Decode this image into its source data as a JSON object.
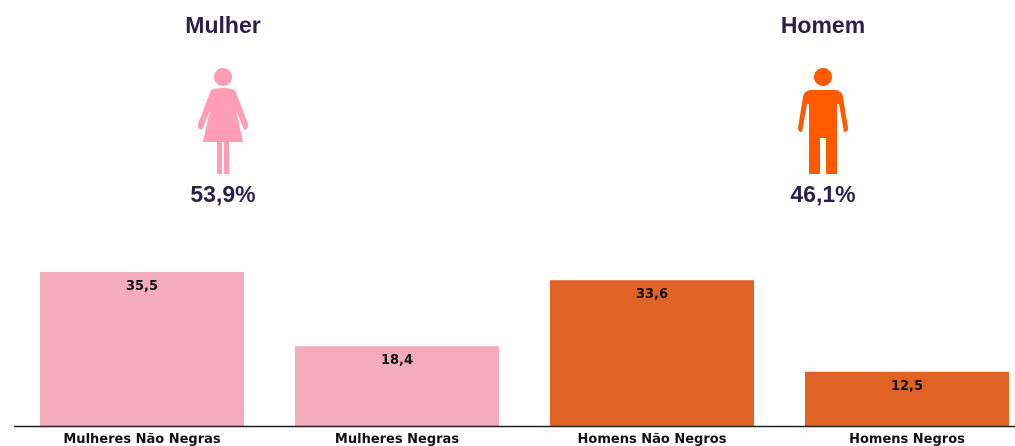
{
  "header": {
    "female": {
      "title": "Mulher",
      "percent": "53,9%",
      "icon": "woman-icon",
      "color": "#ff9db5"
    },
    "male": {
      "title": "Homem",
      "percent": "46,1%",
      "icon": "man-icon",
      "color": "#ff5a00"
    }
  },
  "chart_data": {
    "type": "bar",
    "categories": [
      "Mulheres Não Negras",
      "Mulheres Negras",
      "Homens Não Negros",
      "Homens Negros"
    ],
    "values": [
      35.5,
      18.4,
      33.6,
      12.5
    ],
    "value_labels": [
      "35,5",
      "18,4",
      "33,6",
      "12,5"
    ],
    "colors": [
      "#f3abbd",
      "#f3abbd",
      "#e06224",
      "#e06224"
    ],
    "title": "",
    "xlabel": "",
    "ylabel": "",
    "ylim": [
      0,
      35.5
    ],
    "grid": false,
    "legend": "none"
  }
}
